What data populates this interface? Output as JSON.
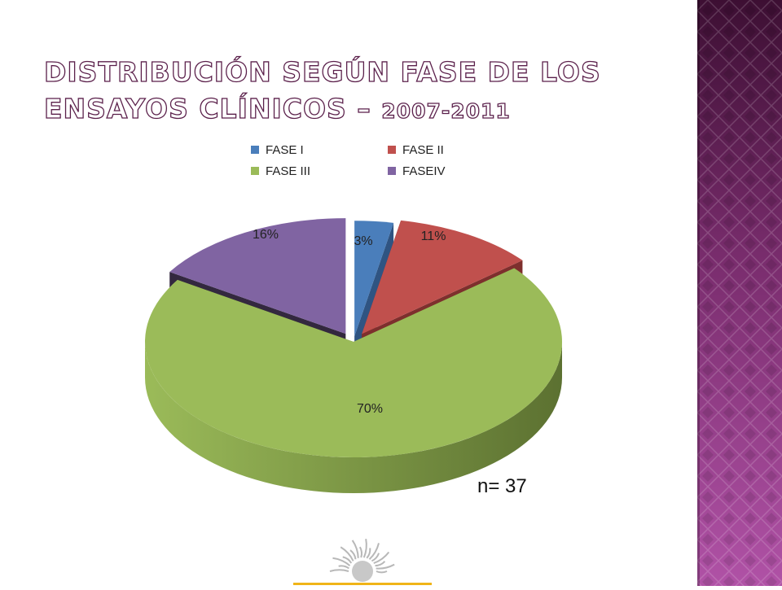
{
  "slide": {
    "title_main": "Distribución según fase de los ensayos clínicos – ",
    "title_year": "2007-2011",
    "sample_size": "n= 37"
  },
  "colors": {
    "panel_dark": "#3d0f33",
    "panel_mid": "#7a2d6e",
    "panel_light": "#b052a6"
  },
  "chart_data": {
    "type": "pie",
    "title": "",
    "three_d": true,
    "exploded": true,
    "legend_position": "top",
    "categories": [
      "FASE I",
      "FASE II",
      "FASE III",
      "FASEIV"
    ],
    "values": [
      3,
      11,
      70,
      16
    ],
    "labels": [
      "3%",
      "11%",
      "70%",
      "16%"
    ],
    "colors": [
      "#4a7ebb",
      "#c0504d",
      "#9bbb59",
      "#8064a2"
    ],
    "side_colors": [
      "#2f5482",
      "#7e2f2d",
      "#5c7131",
      "#33283f"
    ]
  }
}
